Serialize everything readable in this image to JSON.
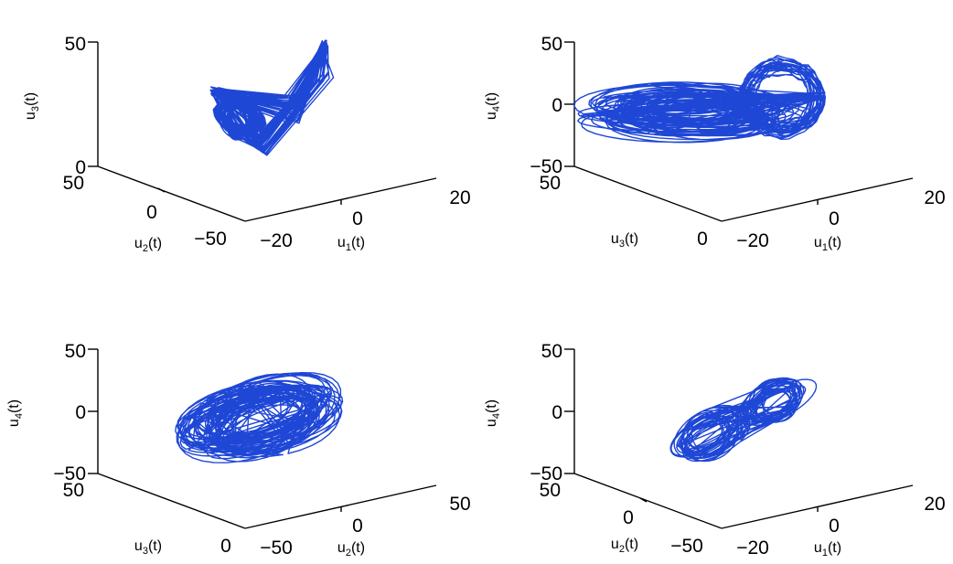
{
  "colors": {
    "series": "#1f47d6",
    "axis": "#000000",
    "background": "#ffffff"
  },
  "chart_data": [
    {
      "type": "line",
      "title": "",
      "series": [
        {
          "shape": "butterfly-attractor"
        }
      ],
      "axes": {
        "x": {
          "label": {
            "base": "u",
            "sub": "1",
            "suffix": "(t)"
          },
          "ticks": [
            "−20",
            "0",
            "20"
          ],
          "range": [
            -20,
            20
          ]
        },
        "y": {
          "label": {
            "base": "u",
            "sub": "2",
            "suffix": "(t)"
          },
          "ticks": [
            "−50",
            "0",
            "50"
          ],
          "range": [
            -50,
            50
          ]
        },
        "z": {
          "label": {
            "base": "u",
            "sub": "3",
            "suffix": "(t)"
          },
          "ticks": [
            "0",
            "50"
          ],
          "range": [
            0,
            50
          ]
        }
      },
      "grid": false
    },
    {
      "type": "line",
      "title": "",
      "series": [
        {
          "shape": "flat-loops-with-lobe"
        }
      ],
      "axes": {
        "x": {
          "label": {
            "base": "u",
            "sub": "1",
            "suffix": "(t)"
          },
          "ticks": [
            "−20",
            "0",
            "20"
          ],
          "range": [
            -20,
            20
          ]
        },
        "y": {
          "label": {
            "base": "u",
            "sub": "3",
            "suffix": "(t)"
          },
          "ticks": [
            "0",
            "50"
          ],
          "range": [
            0,
            50
          ]
        },
        "z": {
          "label": {
            "base": "u",
            "sub": "4",
            "suffix": "(t)"
          },
          "ticks": [
            "−50",
            "0",
            "50"
          ],
          "range": [
            -50,
            50
          ]
        }
      },
      "grid": false
    },
    {
      "type": "line",
      "title": "",
      "series": [
        {
          "shape": "elliptical-loops"
        }
      ],
      "axes": {
        "x": {
          "label": {
            "base": "u",
            "sub": "2",
            "suffix": "(t)"
          },
          "ticks": [
            "−50",
            "0",
            "50"
          ],
          "range": [
            -50,
            50
          ]
        },
        "y": {
          "label": {
            "base": "u",
            "sub": "3",
            "suffix": "(t)"
          },
          "ticks": [
            "0",
            "50"
          ],
          "range": [
            0,
            50
          ]
        },
        "z": {
          "label": {
            "base": "u",
            "sub": "4",
            "suffix": "(t)"
          },
          "ticks": [
            "−50",
            "0",
            "50"
          ],
          "range": [
            -50,
            50
          ]
        }
      },
      "grid": false
    },
    {
      "type": "line",
      "title": "",
      "series": [
        {
          "shape": "tilted-butterfly"
        }
      ],
      "axes": {
        "x": {
          "label": {
            "base": "u",
            "sub": "1",
            "suffix": "(t)"
          },
          "ticks": [
            "−20",
            "0",
            "20"
          ],
          "range": [
            -20,
            20
          ]
        },
        "y": {
          "label": {
            "base": "u",
            "sub": "2",
            "suffix": "(t)"
          },
          "ticks": [
            "−50",
            "0",
            "50"
          ],
          "range": [
            -50,
            50
          ]
        },
        "z": {
          "label": {
            "base": "u",
            "sub": "4",
            "suffix": "(t)"
          },
          "ticks": [
            "−50",
            "0",
            "50"
          ],
          "range": [
            -50,
            50
          ]
        }
      },
      "grid": false
    }
  ]
}
